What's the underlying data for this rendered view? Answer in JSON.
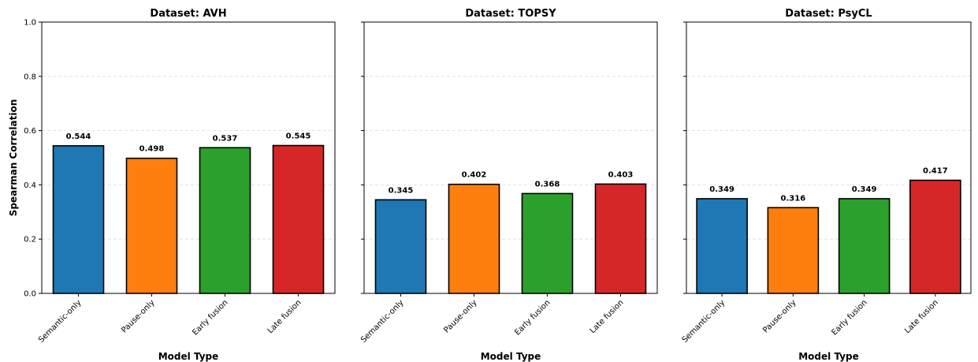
{
  "colors": {
    "Semantic-only": "#1f77b4",
    "Pause-only": "#ff7f0e",
    "Early fusion": "#2ca02c",
    "Late fusion": "#d62728"
  },
  "ylabel": "Spearman Correlation",
  "xlabel": "Model Type",
  "chart_data": [
    {
      "type": "bar",
      "title": "Dataset: AVH",
      "xlabel": "Model Type",
      "ylabel": "Spearman Correlation",
      "categories": [
        "Semantic-only",
        "Pause-only",
        "Early fusion",
        "Late fusion"
      ],
      "values": [
        0.544,
        0.498,
        0.537,
        0.545
      ],
      "value_labels": [
        "0.544",
        "0.498",
        "0.537",
        "0.545"
      ],
      "ylim": [
        0,
        1.0
      ],
      "yticks": [
        "0.0",
        "0.2",
        "0.4",
        "0.6",
        "0.8",
        "1.0"
      ],
      "grid": true
    },
    {
      "type": "bar",
      "title": "Dataset: TOPSY",
      "xlabel": "Model Type",
      "ylabel": "",
      "categories": [
        "Semantic-only",
        "Pause-only",
        "Early fusion",
        "Late fusion"
      ],
      "values": [
        0.345,
        0.402,
        0.368,
        0.403
      ],
      "value_labels": [
        "0.345",
        "0.402",
        "0.368",
        "0.403"
      ],
      "ylim": [
        0,
        1.0
      ],
      "yticks": [],
      "grid": true
    },
    {
      "type": "bar",
      "title": "Dataset: PsyCL",
      "xlabel": "Model Type",
      "ylabel": "",
      "categories": [
        "Semantic-only",
        "Pause-only",
        "Early fusion",
        "Late fusion"
      ],
      "values": [
        0.349,
        0.316,
        0.349,
        0.417
      ],
      "value_labels": [
        "0.349",
        "0.316",
        "0.349",
        "0.417"
      ],
      "ylim": [
        0,
        1.0
      ],
      "yticks": [],
      "grid": true
    }
  ]
}
